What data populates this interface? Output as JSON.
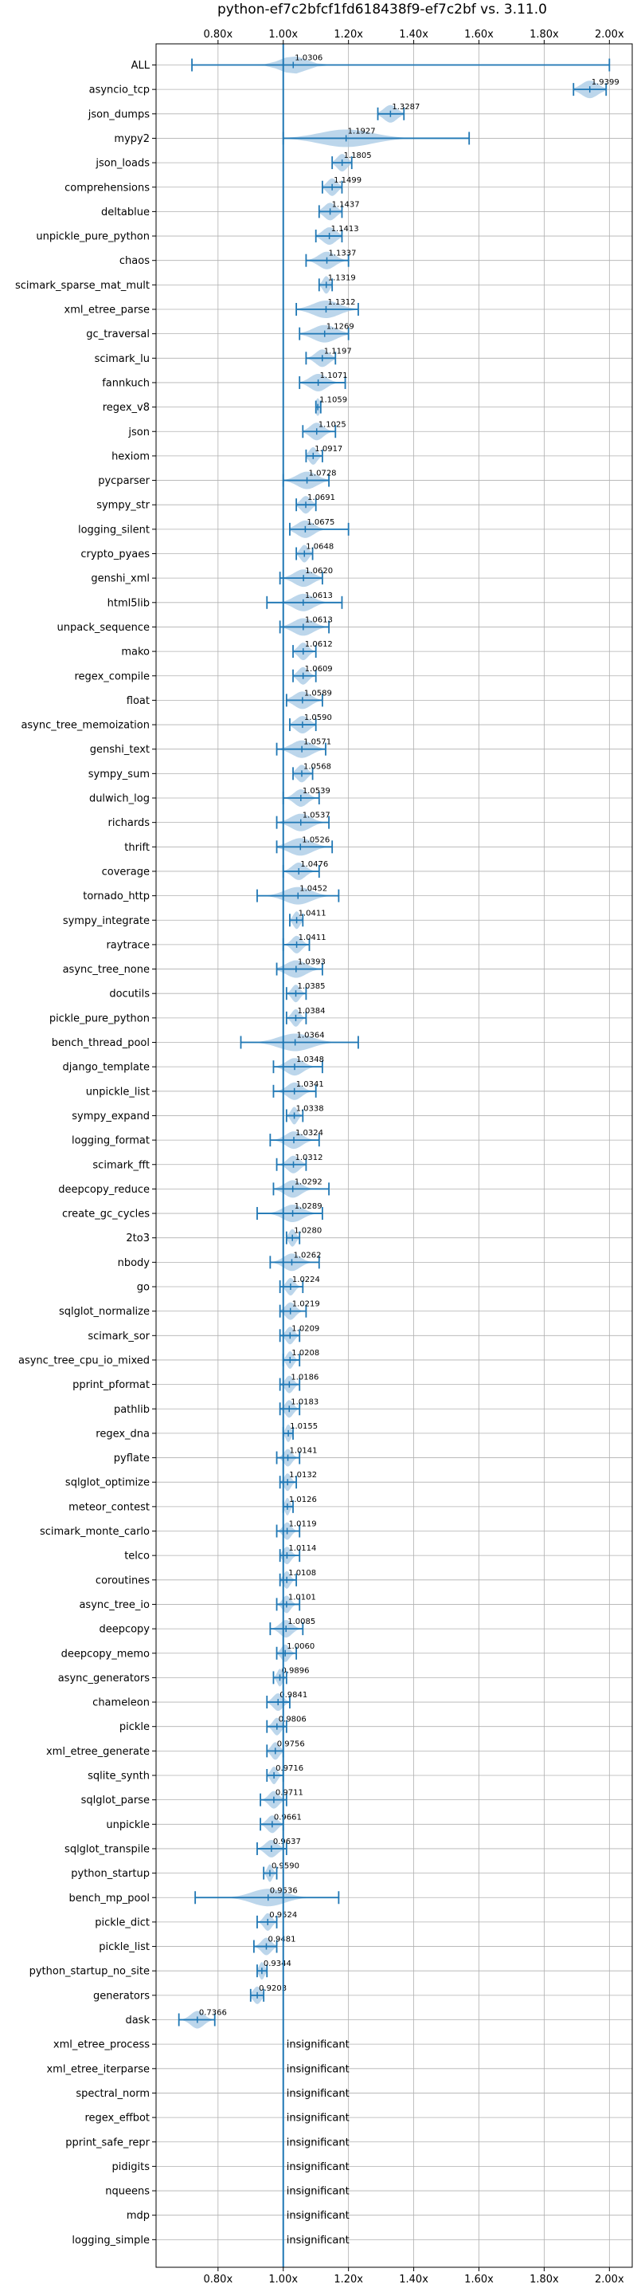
{
  "chart_data": {
    "type": "violin",
    "title": "python-ef7c2bfcf1fd618438f9-ef7c2bf vs. 3.11.0",
    "xlim": [
      0.61,
      2.07
    ],
    "x_ticks": [
      {
        "value": 0.8,
        "label": "0.80x"
      },
      {
        "value": 1.0,
        "label": "1.00x"
      },
      {
        "value": 1.2,
        "label": "1.20x"
      },
      {
        "value": 1.4,
        "label": "1.40x"
      },
      {
        "value": 1.6,
        "label": "1.60x"
      },
      {
        "value": 1.8,
        "label": "1.80x"
      },
      {
        "value": 2.0,
        "label": "2.00x"
      }
    ],
    "ticks_top_and_bottom": true,
    "grid": true,
    "reference_line": 1.0,
    "insignificant_label": "insignificant",
    "colors": {
      "line": "#1f77b4",
      "violin": "#a6c8e4",
      "grid": "#b0b0b0"
    },
    "benchmarks": [
      {
        "name": "ALL",
        "value": 1.0306,
        "label": "1.0306",
        "min": 0.72,
        "max": 2.0,
        "spread": 0.04
      },
      {
        "name": "asyncio_tcp",
        "value": 1.9399,
        "label": "1.9399",
        "min": 1.89,
        "max": 1.99,
        "spread": 0.025
      },
      {
        "name": "json_dumps",
        "value": 1.3287,
        "label": "1.3287",
        "min": 1.29,
        "max": 1.37,
        "spread": 0.02
      },
      {
        "name": "mypy2",
        "value": 1.1927,
        "label": "1.1927",
        "min": 1.0,
        "max": 1.57,
        "spread": 0.08
      },
      {
        "name": "json_loads",
        "value": 1.1805,
        "label": "1.1805",
        "min": 1.15,
        "max": 1.21,
        "spread": 0.015
      },
      {
        "name": "comprehensions",
        "value": 1.1499,
        "label": "1.1499",
        "min": 1.12,
        "max": 1.18,
        "spread": 0.015
      },
      {
        "name": "deltablue",
        "value": 1.1437,
        "label": "1.1437",
        "min": 1.11,
        "max": 1.18,
        "spread": 0.018
      },
      {
        "name": "unpickle_pure_python",
        "value": 1.1413,
        "label": "1.1413",
        "min": 1.1,
        "max": 1.18,
        "spread": 0.02
      },
      {
        "name": "chaos",
        "value": 1.1337,
        "label": "1.1337",
        "min": 1.07,
        "max": 1.2,
        "spread": 0.025
      },
      {
        "name": "scimark_sparse_mat_mult",
        "value": 1.1319,
        "label": "1.1319",
        "min": 1.11,
        "max": 1.15,
        "spread": 0.01
      },
      {
        "name": "xml_etree_parse",
        "value": 1.1312,
        "label": "1.1312",
        "min": 1.04,
        "max": 1.23,
        "spread": 0.04
      },
      {
        "name": "gc_traversal",
        "value": 1.1269,
        "label": "1.1269",
        "min": 1.05,
        "max": 1.2,
        "spread": 0.035
      },
      {
        "name": "scimark_lu",
        "value": 1.1197,
        "label": "1.1197",
        "min": 1.07,
        "max": 1.16,
        "spread": 0.02
      },
      {
        "name": "fannkuch",
        "value": 1.1071,
        "label": "1.1071",
        "min": 1.05,
        "max": 1.19,
        "spread": 0.025
      },
      {
        "name": "regex_v8",
        "value": 1.1059,
        "label": "1.1059",
        "min": 1.1,
        "max": 1.115,
        "spread": 0.005
      },
      {
        "name": "json",
        "value": 1.1025,
        "label": "1.1025",
        "min": 1.06,
        "max": 1.16,
        "spread": 0.02
      },
      {
        "name": "hexiom",
        "value": 1.0917,
        "label": "1.0917",
        "min": 1.07,
        "max": 1.12,
        "spread": 0.012
      },
      {
        "name": "pycparser",
        "value": 1.0728,
        "label": "1.0728",
        "min": 1.0,
        "max": 1.14,
        "spread": 0.03
      },
      {
        "name": "sympy_str",
        "value": 1.0691,
        "label": "1.0691",
        "min": 1.04,
        "max": 1.1,
        "spread": 0.015
      },
      {
        "name": "logging_silent",
        "value": 1.0675,
        "label": "1.0675",
        "min": 1.02,
        "max": 1.2,
        "spread": 0.025
      },
      {
        "name": "crypto_pyaes",
        "value": 1.0648,
        "label": "1.0648",
        "min": 1.04,
        "max": 1.09,
        "spread": 0.012
      },
      {
        "name": "genshi_xml",
        "value": 1.062,
        "label": "1.0620",
        "min": 0.99,
        "max": 1.12,
        "spread": 0.028
      },
      {
        "name": "html5lib",
        "value": 1.0613,
        "label": "1.0613",
        "min": 0.95,
        "max": 1.18,
        "spread": 0.03
      },
      {
        "name": "unpack_sequence",
        "value": 1.0613,
        "label": "1.0613",
        "min": 0.99,
        "max": 1.14,
        "spread": 0.03
      },
      {
        "name": "mako",
        "value": 1.0612,
        "label": "1.0612",
        "min": 1.03,
        "max": 1.1,
        "spread": 0.015
      },
      {
        "name": "regex_compile",
        "value": 1.0609,
        "label": "1.0609",
        "min": 1.03,
        "max": 1.1,
        "spread": 0.015
      },
      {
        "name": "float",
        "value": 1.0589,
        "label": "1.0589",
        "min": 1.01,
        "max": 1.12,
        "spread": 0.025
      },
      {
        "name": "async_tree_memoization",
        "value": 1.059,
        "label": "1.0590",
        "min": 1.02,
        "max": 1.1,
        "spread": 0.02
      },
      {
        "name": "genshi_text",
        "value": 1.0571,
        "label": "1.0571",
        "min": 0.98,
        "max": 1.13,
        "spread": 0.03
      },
      {
        "name": "sympy_sum",
        "value": 1.0568,
        "label": "1.0568",
        "min": 1.03,
        "max": 1.09,
        "spread": 0.015
      },
      {
        "name": "dulwich_log",
        "value": 1.0539,
        "label": "1.0539",
        "min": 1.0,
        "max": 1.11,
        "spread": 0.02
      },
      {
        "name": "richards",
        "value": 1.0537,
        "label": "1.0537",
        "min": 0.98,
        "max": 1.14,
        "spread": 0.03
      },
      {
        "name": "thrift",
        "value": 1.0526,
        "label": "1.0526",
        "min": 0.98,
        "max": 1.15,
        "spread": 0.035
      },
      {
        "name": "coverage",
        "value": 1.0476,
        "label": "1.0476",
        "min": 1.0,
        "max": 1.11,
        "spread": 0.02
      },
      {
        "name": "tornado_http",
        "value": 1.0452,
        "label": "1.0452",
        "min": 0.92,
        "max": 1.17,
        "spread": 0.04
      },
      {
        "name": "sympy_integrate",
        "value": 1.0411,
        "label": "1.0411",
        "min": 1.02,
        "max": 1.06,
        "spread": 0.01
      },
      {
        "name": "raytrace",
        "value": 1.0411,
        "label": "1.0411",
        "min": 1.0,
        "max": 1.08,
        "spread": 0.015
      },
      {
        "name": "async_tree_none",
        "value": 1.0393,
        "label": "1.0393",
        "min": 0.98,
        "max": 1.12,
        "spread": 0.03
      },
      {
        "name": "docutils",
        "value": 1.0385,
        "label": "1.0385",
        "min": 1.01,
        "max": 1.07,
        "spread": 0.012
      },
      {
        "name": "pickle_pure_python",
        "value": 1.0384,
        "label": "1.0384",
        "min": 1.01,
        "max": 1.07,
        "spread": 0.012
      },
      {
        "name": "bench_thread_pool",
        "value": 1.0364,
        "label": "1.0364",
        "min": 0.87,
        "max": 1.23,
        "spread": 0.05
      },
      {
        "name": "django_template",
        "value": 1.0348,
        "label": "1.0348",
        "min": 0.97,
        "max": 1.12,
        "spread": 0.025
      },
      {
        "name": "unpickle_list",
        "value": 1.0341,
        "label": "1.0341",
        "min": 0.97,
        "max": 1.1,
        "spread": 0.022
      },
      {
        "name": "sympy_expand",
        "value": 1.0338,
        "label": "1.0338",
        "min": 1.01,
        "max": 1.06,
        "spread": 0.01
      },
      {
        "name": "logging_format",
        "value": 1.0324,
        "label": "1.0324",
        "min": 0.96,
        "max": 1.11,
        "spread": 0.025
      },
      {
        "name": "scimark_fft",
        "value": 1.0312,
        "label": "1.0312",
        "min": 0.98,
        "max": 1.07,
        "spread": 0.018
      },
      {
        "name": "deepcopy_reduce",
        "value": 1.0292,
        "label": "1.0292",
        "min": 0.97,
        "max": 1.14,
        "spread": 0.025
      },
      {
        "name": "create_gc_cycles",
        "value": 1.0289,
        "label": "1.0289",
        "min": 0.92,
        "max": 1.12,
        "spread": 0.03
      },
      {
        "name": "2to3",
        "value": 1.028,
        "label": "1.0280",
        "min": 1.01,
        "max": 1.05,
        "spread": 0.01
      },
      {
        "name": "nbody",
        "value": 1.0262,
        "label": "1.0262",
        "min": 0.96,
        "max": 1.11,
        "spread": 0.025
      },
      {
        "name": "go",
        "value": 1.0224,
        "label": "1.0224",
        "min": 0.99,
        "max": 1.06,
        "spread": 0.012
      },
      {
        "name": "sqlglot_normalize",
        "value": 1.0219,
        "label": "1.0219",
        "min": 0.99,
        "max": 1.07,
        "spread": 0.015
      },
      {
        "name": "scimark_sor",
        "value": 1.0209,
        "label": "1.0209",
        "min": 0.99,
        "max": 1.05,
        "spread": 0.012
      },
      {
        "name": "async_tree_cpu_io_mixed",
        "value": 1.0208,
        "label": "1.0208",
        "min": 1.0,
        "max": 1.05,
        "spread": 0.01
      },
      {
        "name": "pprint_pformat",
        "value": 1.0186,
        "label": "1.0186",
        "min": 0.99,
        "max": 1.05,
        "spread": 0.012
      },
      {
        "name": "pathlib",
        "value": 1.0183,
        "label": "1.0183",
        "min": 0.99,
        "max": 1.05,
        "spread": 0.012
      },
      {
        "name": "regex_dna",
        "value": 1.0155,
        "label": "1.0155",
        "min": 1.0,
        "max": 1.03,
        "spread": 0.008
      },
      {
        "name": "pyflate",
        "value": 1.0141,
        "label": "1.0141",
        "min": 0.98,
        "max": 1.05,
        "spread": 0.012
      },
      {
        "name": "sqlglot_optimize",
        "value": 1.0132,
        "label": "1.0132",
        "min": 0.99,
        "max": 1.04,
        "spread": 0.01
      },
      {
        "name": "meteor_contest",
        "value": 1.0126,
        "label": "1.0126",
        "min": 1.0,
        "max": 1.03,
        "spread": 0.007
      },
      {
        "name": "scimark_monte_carlo",
        "value": 1.0119,
        "label": "1.0119",
        "min": 0.98,
        "max": 1.05,
        "spread": 0.012
      },
      {
        "name": "telco",
        "value": 1.0114,
        "label": "1.0114",
        "min": 0.99,
        "max": 1.05,
        "spread": 0.012
      },
      {
        "name": "coroutines",
        "value": 1.0108,
        "label": "1.0108",
        "min": 0.99,
        "max": 1.04,
        "spread": 0.01
      },
      {
        "name": "async_tree_io",
        "value": 1.0101,
        "label": "1.0101",
        "min": 0.98,
        "max": 1.05,
        "spread": 0.012
      },
      {
        "name": "deepcopy",
        "value": 1.0085,
        "label": "1.0085",
        "min": 0.96,
        "max": 1.06,
        "spread": 0.018
      },
      {
        "name": "deepcopy_memo",
        "value": 1.006,
        "label": "1.0060",
        "min": 0.98,
        "max": 1.04,
        "spread": 0.012
      },
      {
        "name": "async_generators",
        "value": 0.9896,
        "label": "0.9896",
        "min": 0.97,
        "max": 1.01,
        "spread": 0.008
      },
      {
        "name": "chameleon",
        "value": 0.9841,
        "label": "0.9841",
        "min": 0.95,
        "max": 1.02,
        "spread": 0.015
      },
      {
        "name": "pickle",
        "value": 0.9806,
        "label": "0.9806",
        "min": 0.95,
        "max": 1.01,
        "spread": 0.012
      },
      {
        "name": "xml_etree_generate",
        "value": 0.9756,
        "label": "0.9756",
        "min": 0.95,
        "max": 1.0,
        "spread": 0.012
      },
      {
        "name": "sqlite_synth",
        "value": 0.9716,
        "label": "0.9716",
        "min": 0.95,
        "max": 1.0,
        "spread": 0.01
      },
      {
        "name": "sqlglot_parse",
        "value": 0.9711,
        "label": "0.9711",
        "min": 0.93,
        "max": 1.01,
        "spread": 0.015
      },
      {
        "name": "unpickle",
        "value": 0.9661,
        "label": "0.9661",
        "min": 0.93,
        "max": 1.0,
        "spread": 0.015
      },
      {
        "name": "sqlglot_transpile",
        "value": 0.9637,
        "label": "0.9637",
        "min": 0.92,
        "max": 1.01,
        "spread": 0.018
      },
      {
        "name": "python_startup",
        "value": 0.959,
        "label": "0.9590",
        "min": 0.94,
        "max": 0.98,
        "spread": 0.008
      },
      {
        "name": "bench_mp_pool",
        "value": 0.9536,
        "label": "0.9536",
        "min": 0.73,
        "max": 1.17,
        "spread": 0.05
      },
      {
        "name": "pickle_dict",
        "value": 0.9524,
        "label": "0.9524",
        "min": 0.92,
        "max": 0.98,
        "spread": 0.012
      },
      {
        "name": "pickle_list",
        "value": 0.9481,
        "label": "0.9481",
        "min": 0.91,
        "max": 0.98,
        "spread": 0.015
      },
      {
        "name": "python_startup_no_site",
        "value": 0.9344,
        "label": "0.9344",
        "min": 0.92,
        "max": 0.95,
        "spread": 0.008
      },
      {
        "name": "generators",
        "value": 0.9203,
        "label": "0.9203",
        "min": 0.9,
        "max": 0.94,
        "spread": 0.012
      },
      {
        "name": "dask",
        "value": 0.7366,
        "label": "0.7366",
        "min": 0.68,
        "max": 0.79,
        "spread": 0.02
      },
      {
        "name": "xml_etree_process",
        "insignificant": true
      },
      {
        "name": "xml_etree_iterparse",
        "insignificant": true
      },
      {
        "name": "spectral_norm",
        "insignificant": true
      },
      {
        "name": "regex_effbot",
        "insignificant": true
      },
      {
        "name": "pprint_safe_repr",
        "insignificant": true
      },
      {
        "name": "pidigits",
        "insignificant": true
      },
      {
        "name": "nqueens",
        "insignificant": true
      },
      {
        "name": "mdp",
        "insignificant": true
      },
      {
        "name": "logging_simple",
        "insignificant": true
      }
    ]
  }
}
